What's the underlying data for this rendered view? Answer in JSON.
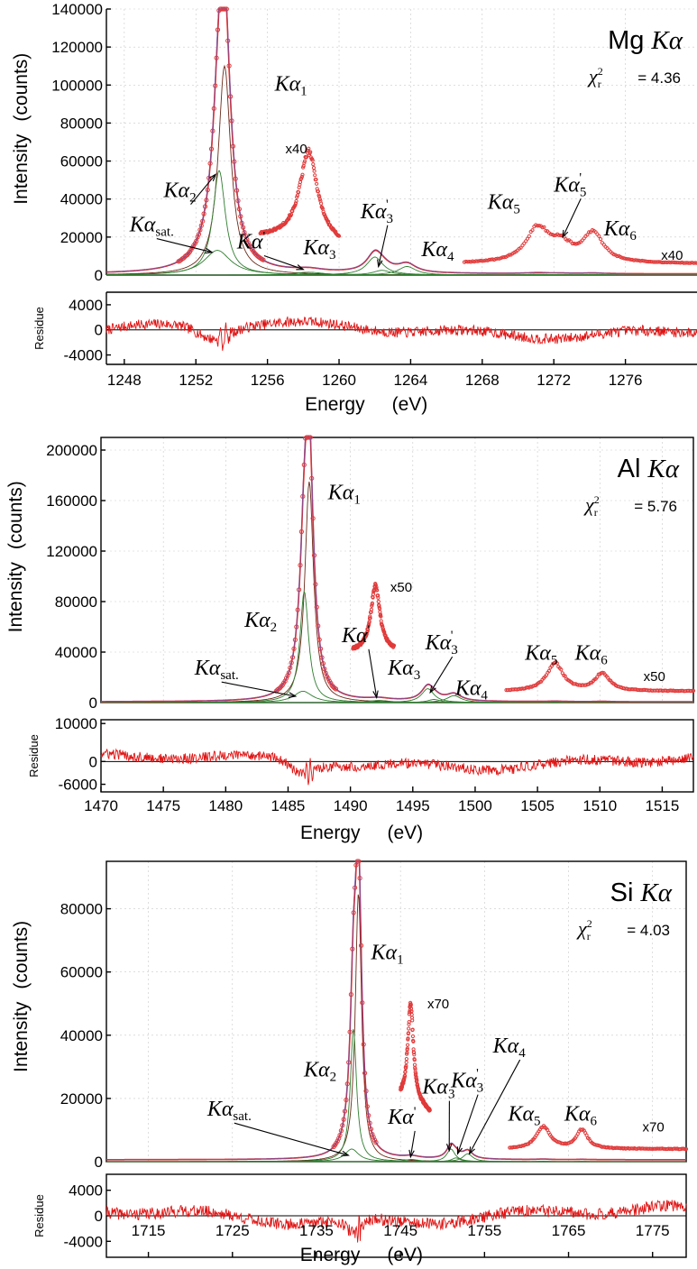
{
  "chart_data": [
    {
      "type": "line",
      "title": "Mg Kα",
      "title_element": "Mg",
      "chi_label": "χ²r",
      "chi_value": "= 4.36",
      "xlabel": "Energy (eV)",
      "xlabel_parts": [
        "Energy",
        "(eV)"
      ],
      "ylabel": "Intensity (counts)",
      "ylabel_parts": [
        "Intensity",
        "(counts)"
      ],
      "residue_label": "Residue",
      "xlim": [
        1247,
        1280
      ],
      "ylim": [
        0,
        140000
      ],
      "xticks": [
        1248,
        1252,
        1256,
        1260,
        1264,
        1268,
        1272,
        1276
      ],
      "yticks": [
        20000,
        40000,
        60000,
        80000,
        100000,
        120000,
        140000
      ],
      "res_ylim": [
        -5500,
        6000
      ],
      "res_yticks": [
        4000,
        0,
        -4000
      ],
      "grid": true,
      "series": [
        {
          "name": "Kα1",
          "center": 1253.6,
          "height": 110000,
          "width": 0.42
        },
        {
          "name": "Kα2",
          "center": 1253.3,
          "height": 55000,
          "width": 0.42
        },
        {
          "name": "Kαsat.",
          "center": 1253.2,
          "height": 13000,
          "width": 0.9
        },
        {
          "name": "Kα'",
          "center": 1258.3,
          "height": 1500,
          "width": 1.0
        },
        {
          "name": "Kα3",
          "center": 1262.0,
          "height": 9500,
          "width": 0.55
        },
        {
          "name": "Kα3'",
          "center": 1262.4,
          "height": 2500,
          "width": 0.6
        },
        {
          "name": "Kα4",
          "center": 1263.8,
          "height": 4500,
          "width": 0.6
        },
        {
          "name": "Kα5",
          "center": 1271.1,
          "height": 450,
          "width": 0.8
        },
        {
          "name": "Kα5'",
          "center": 1272.4,
          "height": 200,
          "width": 0.8
        },
        {
          "name": "Kα6",
          "center": 1274.2,
          "height": 350,
          "width": 0.7
        }
      ],
      "data_max": 140000,
      "labels": [
        {
          "text": "Kα",
          "sub": "1",
          "sup": "",
          "x": 1256.4,
          "y": 97000,
          "ax": null,
          "ay": null
        },
        {
          "text": "Kα",
          "sub": "2",
          "sup": "",
          "x": 1250.2,
          "y": 41000,
          "ax": 1253.1,
          "ay": 53000
        },
        {
          "text": "Kα",
          "sub": "sat.",
          "sup": "",
          "x": 1248.3,
          "y": 23000,
          "ax": 1252.9,
          "ay": 12000
        },
        {
          "text": "Kα",
          "sub": "",
          "sup": "'",
          "x": 1254.3,
          "y": 14000,
          "ax": 1258.0,
          "ay": 3000
        },
        {
          "text": "Kα",
          "sub": "3",
          "sup": "",
          "x": 1258.0,
          "y": 11000,
          "ax": null,
          "ay": null
        },
        {
          "text": "Kα",
          "sub": "3",
          "sup": "'",
          "x": 1261.2,
          "y": 30000,
          "ax": 1262.2,
          "ay": 4500
        },
        {
          "text": "Kα",
          "sub": "4",
          "sup": "",
          "x": 1264.6,
          "y": 10000,
          "ax": null,
          "ay": null
        },
        {
          "text": "Kα",
          "sub": "5",
          "sup": "",
          "x": 1268.3,
          "y": 35000,
          "ax": null,
          "ay": null
        },
        {
          "text": "Kα",
          "sub": "5",
          "sup": "'",
          "x": 1272.0,
          "y": 44000,
          "ax": 1272.5,
          "ay": 20000
        },
        {
          "text": "Kα",
          "sub": "6",
          "sup": "",
          "x": 1274.8,
          "y": 21000,
          "ax": null,
          "ay": null
        }
      ],
      "zoom_insets": [
        {
          "mult": "x40",
          "xrange": [
            1255.6,
            1260.0
          ],
          "base": 20000,
          "peak_center": 1258.3,
          "peak_height": 45000,
          "peak_width": 0.6,
          "slope": 2500
        },
        {
          "mult": "x40",
          "xrange": [
            1267.0,
            1280.0
          ],
          "base": 6000,
          "peak_center": 1271.1,
          "peak_height": 18000,
          "peak_width": 0.8,
          "extra": [
            [
              1272.4,
              8000,
              0.7
            ],
            [
              1274.2,
              15000,
              0.7
            ]
          ]
        }
      ],
      "mult_labels": [
        {
          "text": "x40",
          "x": 1257.0,
          "y": 64000
        },
        {
          "text": "x40",
          "x": 1278.0,
          "y": 8000
        }
      ]
    },
    {
      "type": "line",
      "title": "Al Kα",
      "title_element": "Al",
      "chi_label": "χ²r",
      "chi_value": "= 5.76",
      "xlabel": "Energy (eV)",
      "xlabel_parts": [
        "Energy",
        "(eV)"
      ],
      "ylabel": "Intensity (counts)",
      "ylabel_parts": [
        "Intensity",
        "(counts)"
      ],
      "residue_label": "Residue",
      "xlim": [
        1470,
        1517.5
      ],
      "ylim": [
        0,
        210000
      ],
      "xticks": [
        1470,
        1475,
        1480,
        1485,
        1490,
        1495,
        1500,
        1505,
        1510,
        1515
      ],
      "yticks": [
        40000,
        80000,
        120000,
        160000,
        200000
      ],
      "res_ylim": [
        -8000,
        11000
      ],
      "res_yticks": [
        10000,
        0,
        -6000
      ],
      "grid": true,
      "series": [
        {
          "name": "Kα1",
          "center": 1486.7,
          "height": 175000,
          "width": 0.42
        },
        {
          "name": "Kα2",
          "center": 1486.3,
          "height": 88000,
          "width": 0.42
        },
        {
          "name": "Kαsat.",
          "center": 1486.2,
          "height": 9000,
          "width": 0.9
        },
        {
          "name": "Kα'",
          "center": 1492.3,
          "height": 1700,
          "width": 1.1
        },
        {
          "name": "Kα3",
          "center": 1496.2,
          "height": 11000,
          "width": 0.6
        },
        {
          "name": "Kα3'",
          "center": 1496.7,
          "height": 2500,
          "width": 0.6
        },
        {
          "name": "Kα4",
          "center": 1498.3,
          "height": 5500,
          "width": 0.7
        },
        {
          "name": "Kα5",
          "center": 1506.4,
          "height": 380,
          "width": 0.8
        },
        {
          "name": "Kα6",
          "center": 1510.2,
          "height": 260,
          "width": 0.7
        }
      ],
      "data_max": 210000,
      "labels": [
        {
          "text": "Kα",
          "sub": "1",
          "sup": "",
          "x": 1488.2,
          "y": 161000,
          "ax": null,
          "ay": null
        },
        {
          "text": "Kα",
          "sub": "2",
          "sup": "",
          "x": 1481.5,
          "y": 60000,
          "ax": null,
          "ay": null
        },
        {
          "text": "Kα",
          "sub": "sat.",
          "sup": "",
          "x": 1477.5,
          "y": 22000,
          "ax": 1485.6,
          "ay": 5000
        },
        {
          "text": "Kα",
          "sub": "",
          "sup": "'",
          "x": 1489.3,
          "y": 48000,
          "ax": 1492.1,
          "ay": 4000
        },
        {
          "text": "Kα",
          "sub": "3",
          "sup": "",
          "x": 1493.0,
          "y": 22000,
          "ax": null,
          "ay": null
        },
        {
          "text": "Kα",
          "sub": "3",
          "sup": "'",
          "x": 1496.0,
          "y": 42000,
          "ax": 1496.4,
          "ay": 8000
        },
        {
          "text": "Kα",
          "sub": "4",
          "sup": "",
          "x": 1498.4,
          "y": 6000,
          "ax": null,
          "ay": null
        },
        {
          "text": "Kα",
          "sub": "5",
          "sup": "",
          "x": 1504.0,
          "y": 34000,
          "ax": null,
          "ay": null
        },
        {
          "text": "Kα",
          "sub": "6",
          "sup": "",
          "x": 1508.0,
          "y": 34000,
          "ax": null,
          "ay": null
        }
      ],
      "zoom_insets": [
        {
          "mult": "x50",
          "xrange": [
            1490.2,
            1493.5
          ],
          "base": 40000,
          "peak_center": 1492.0,
          "peak_height": 52000,
          "peak_width": 0.45,
          "slope": 0
        },
        {
          "mult": "x50",
          "xrange": [
            1502.5,
            1517.5
          ],
          "base": 9000,
          "peak_center": 1506.4,
          "peak_height": 22000,
          "peak_width": 0.8,
          "extra": [
            [
              1510.2,
              14000,
              0.7
            ]
          ]
        }
      ],
      "mult_labels": [
        {
          "text": "x50",
          "x": 1493.2,
          "y": 88000
        },
        {
          "text": "x50",
          "x": 1513.5,
          "y": 17000
        }
      ]
    },
    {
      "type": "line",
      "title": "Si Kα",
      "title_element": "Si",
      "chi_label": "χ²r",
      "chi_value": "= 4.03",
      "xlabel": "Energy (eV)",
      "xlabel_parts": [
        "Energy",
        "(eV)"
      ],
      "ylabel": "Intensity (counts)",
      "ylabel_parts": [
        "Intensity",
        "(counts)"
      ],
      "residue_label": "Residue",
      "xlim": [
        1710,
        1779
      ],
      "ylim": [
        0,
        95000
      ],
      "xticks": [
        1715,
        1725,
        1735,
        1745,
        1755,
        1765,
        1775
      ],
      "yticks": [
        20000,
        40000,
        60000,
        80000
      ],
      "res_ylim": [
        -6500,
        6500
      ],
      "res_yticks": [
        4000,
        0,
        -4000
      ],
      "grid": true,
      "series": [
        {
          "name": "Kα1",
          "center": 1740.0,
          "height": 85000,
          "width": 0.45
        },
        {
          "name": "Kα2",
          "center": 1739.4,
          "height": 42000,
          "width": 0.45
        },
        {
          "name": "Kαsat.",
          "center": 1739.2,
          "height": 4000,
          "width": 1.0
        },
        {
          "name": "Kα'",
          "center": 1746.3,
          "height": 700,
          "width": 1.1
        },
        {
          "name": "Kα3",
          "center": 1751.0,
          "height": 4000,
          "width": 0.6
        },
        {
          "name": "Kα3'",
          "center": 1751.6,
          "height": 1200,
          "width": 0.6
        },
        {
          "name": "Kα4",
          "center": 1753.0,
          "height": 2500,
          "width": 0.7
        },
        {
          "name": "Kα5",
          "center": 1762.0,
          "height": 130,
          "width": 1.0
        },
        {
          "name": "Kα6",
          "center": 1766.6,
          "height": 100,
          "width": 0.8
        }
      ],
      "data_max": 95000,
      "labels": [
        {
          "text": "Kα",
          "sub": "1",
          "sup": "",
          "x": 1741.5,
          "y": 64000,
          "ax": null,
          "ay": null
        },
        {
          "text": "Kα",
          "sub": "2",
          "sup": "",
          "x": 1733.5,
          "y": 27000,
          "ax": null,
          "ay": null
        },
        {
          "text": "Kα",
          "sub": "sat.",
          "sup": "",
          "x": 1722.0,
          "y": 14500,
          "ax": 1738.8,
          "ay": 2000
        },
        {
          "text": "Kα",
          "sub": "",
          "sup": "'",
          "x": 1743.5,
          "y": 12000,
          "ax": 1746.2,
          "ay": 1500
        },
        {
          "text": "Kα",
          "sub": "3",
          "sup": "",
          "x": 1747.6,
          "y": 21500,
          "ax": 1750.8,
          "ay": 3500
        },
        {
          "text": "Kα",
          "sub": "3",
          "sup": "'",
          "x": 1751.0,
          "y": 23500,
          "ax": 1751.8,
          "ay": 2500
        },
        {
          "text": "Kα",
          "sub": "4",
          "sup": "",
          "x": 1756.0,
          "y": 34500,
          "ax": 1753.2,
          "ay": 2500
        },
        {
          "text": "Kα",
          "sub": "5",
          "sup": "",
          "x": 1757.8,
          "y": 13000,
          "ax": null,
          "ay": null
        },
        {
          "text": "Kα",
          "sub": "6",
          "sup": "",
          "x": 1764.5,
          "y": 13000,
          "ax": null,
          "ay": null
        }
      ],
      "zoom_insets": [
        {
          "mult": "x70",
          "xrange": [
            1745.0,
            1748.5
          ],
          "base": 20000,
          "peak_center": 1746.2,
          "peak_height": 30000,
          "peak_width": 0.4,
          "slope": 2000
        },
        {
          "mult": "x70",
          "xrange": [
            1758.0,
            1779.0
          ],
          "base": 4000,
          "peak_center": 1762.0,
          "peak_height": 7000,
          "peak_width": 1.0,
          "extra": [
            [
              1766.6,
              6000,
              0.8
            ]
          ]
        }
      ],
      "mult_labels": [
        {
          "text": "x70",
          "x": 1748.2,
          "y": 48500
        },
        {
          "text": "x70",
          "x": 1773.8,
          "y": 9500
        }
      ]
    }
  ]
}
